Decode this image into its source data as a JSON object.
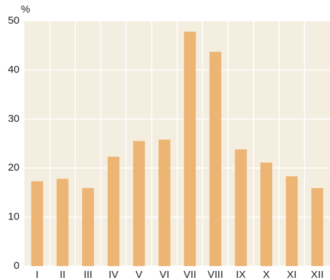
{
  "chart_data": {
    "type": "bar",
    "y_label": "%",
    "categories": [
      "I",
      "II",
      "III",
      "IV",
      "V",
      "VI",
      "VII",
      "VIII",
      "IX",
      "X",
      "XI",
      "XII"
    ],
    "values": [
      17.3,
      17.8,
      15.9,
      22.3,
      25.5,
      25.8,
      47.8,
      43.7,
      23.8,
      21.1,
      18.3,
      15.9
    ],
    "color": "#ecb574",
    "ylim": [
      0,
      50
    ],
    "yticks": [
      0,
      10,
      20,
      30,
      40,
      50
    ],
    "grid": true
  }
}
